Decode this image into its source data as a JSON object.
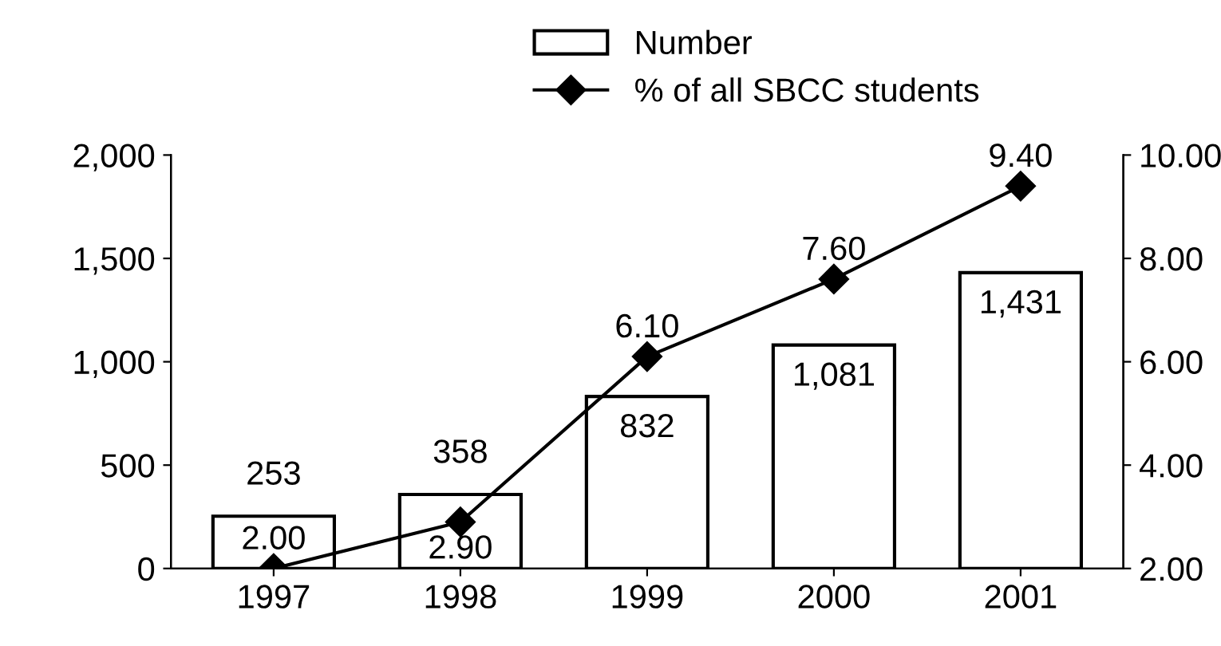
{
  "chart_data": {
    "type": "bar",
    "categories": [
      "1997",
      "1998",
      "1999",
      "2000",
      "2001"
    ],
    "series": [
      {
        "name": "Number",
        "color": "#ffffff",
        "values": [
          253,
          358,
          832,
          1081,
          1431
        ],
        "value_labels": [
          "253",
          "358",
          "832",
          "1,081",
          "1,431"
        ]
      },
      {
        "name": "% of all SBCC students",
        "type": "line",
        "axis": "y2",
        "color": "#000000",
        "marker": "diamond",
        "values": [
          2.0,
          2.9,
          6.1,
          7.6,
          9.4
        ],
        "value_labels": [
          "2.00",
          "2.90",
          "6.10",
          "7.60",
          "9.40"
        ]
      }
    ],
    "ylim": [
      0,
      2000
    ],
    "yticks": [
      0,
      {
        "value": 500,
        "label": "500"
      },
      {
        "value": 1000,
        "label": "1,000"
      },
      {
        "value": 1500,
        "label": "1,500"
      },
      {
        "value": 2000,
        "label": "2,000"
      }
    ],
    "y2lim": [
      2,
      10
    ],
    "y2ticks": [
      {
        "value": 2,
        "label": "2.00"
      },
      {
        "value": 4,
        "label": "4.00"
      },
      {
        "value": 6,
        "label": "6.00"
      },
      {
        "value": 8,
        "label": "8.00"
      },
      {
        "value": 10,
        "label": "10.00"
      }
    ],
    "grid": false,
    "legend": "top"
  }
}
